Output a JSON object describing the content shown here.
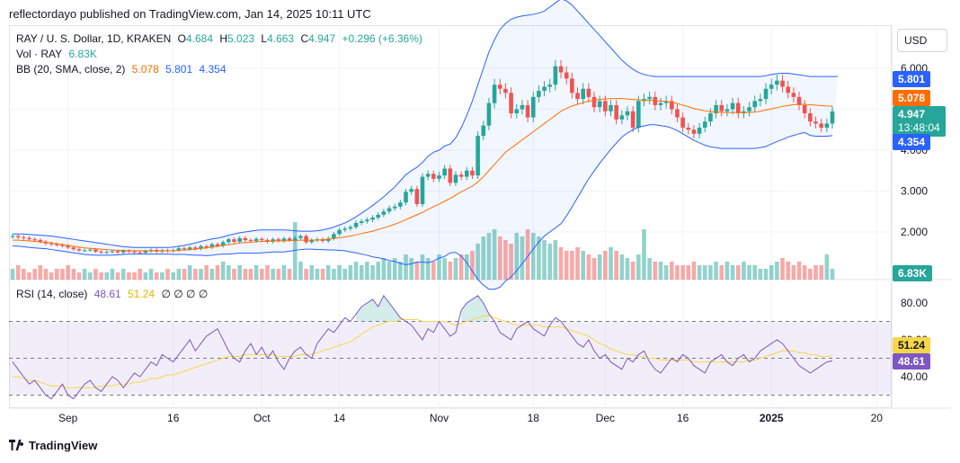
{
  "header": {
    "text": "reflectordayo published on TradingView.com, Jan 14, 2025 10:11 UTC"
  },
  "legend": {
    "symbol": "RAY / U. S. Dollar, 1D, KRAKEN",
    "o_label": "O",
    "o": "4.684",
    "h_label": "H",
    "h": "5.023",
    "l_label": "L",
    "l": "4.663",
    "c_label": "C",
    "c": "4.947",
    "change": "+0.296 (+6.36%)",
    "vol_label": "Vol · RAY",
    "vol": "6.83K",
    "bb_label": "BB (20, SMA, close, 2)",
    "bb_mid": "5.078",
    "bb_up": "5.801",
    "bb_low": "4.354",
    "rsi_label": "RSI (14, close)",
    "rsi": "48.61",
    "rsi_ma": "51.24",
    "rsi_extra": "∅ ∅ ∅ ∅"
  },
  "currency_button": "USD",
  "price_tags": {
    "bb_up": "5.801",
    "bb_mid": "5.078",
    "close": "4.947",
    "countdown": "13:48:04",
    "bb_low": "4.354",
    "volume": "6.83K",
    "rsi_ma": "51.24",
    "rsi": "48.61"
  },
  "colors": {
    "up": "#26a69a",
    "down": "#ef5350",
    "bb_band": "#2962ff",
    "bb_mid": "#ff6d00",
    "rsi": "#7e57c2",
    "rsi_ma": "#f7d64a"
  },
  "footer": {
    "brand": "TradingView"
  },
  "chart_data": {
    "type": "candlestick",
    "price_axis_ticks": [
      "6.000",
      "5.000",
      "4.000",
      "3.000",
      "2.000"
    ],
    "price_axis_values": [
      6.0,
      5.0,
      4.0,
      3.0,
      2.0
    ],
    "rsi_axis_ticks": [
      "80.00",
      "60.00",
      "40.00"
    ],
    "rsi_axis_values": [
      80,
      60,
      40
    ],
    "rsi_levels": [
      70,
      50,
      30
    ],
    "x_ticks": [
      {
        "label": "Sep",
        "i": 10
      },
      {
        "label": "16",
        "i": 29
      },
      {
        "label": "Oct",
        "i": 45
      },
      {
        "label": "14",
        "i": 59
      },
      {
        "label": "Nov",
        "i": 77
      },
      {
        "label": "18",
        "i": 94
      },
      {
        "label": "Dec",
        "i": 107
      },
      {
        "label": "16",
        "i": 121
      },
      {
        "label": "2025",
        "i": 137
      },
      {
        "label": "20",
        "i": 156
      }
    ],
    "close": [
      1.9,
      1.87,
      1.85,
      1.82,
      1.8,
      1.76,
      1.72,
      1.7,
      1.68,
      1.66,
      1.62,
      1.58,
      1.55,
      1.55,
      1.57,
      1.52,
      1.5,
      1.51,
      1.53,
      1.5,
      1.54,
      1.52,
      1.5,
      1.49,
      1.53,
      1.56,
      1.52,
      1.55,
      1.53,
      1.55,
      1.6,
      1.58,
      1.62,
      1.59,
      1.65,
      1.62,
      1.7,
      1.66,
      1.75,
      1.82,
      1.76,
      1.85,
      1.8,
      1.78,
      1.83,
      1.8,
      1.76,
      1.82,
      1.78,
      1.84,
      1.8,
      1.85,
      1.9,
      1.75,
      1.8,
      1.82,
      1.78,
      1.84,
      1.95,
      2.05,
      2.08,
      2.12,
      2.22,
      2.26,
      2.3,
      2.35,
      2.42,
      2.5,
      2.58,
      2.62,
      2.72,
      2.98,
      3.05,
      2.68,
      3.35,
      3.42,
      3.3,
      3.38,
      3.55,
      3.2,
      3.4,
      3.35,
      3.5,
      3.38,
      4.35,
      4.6,
      5.15,
      5.6,
      5.5,
      5.4,
      4.9,
      5.0,
      5.1,
      4.8,
      5.3,
      5.45,
      5.55,
      5.6,
      6.05,
      5.9,
      5.75,
      5.4,
      5.25,
      5.5,
      5.3,
      5.05,
      5.2,
      4.95,
      5.1,
      4.75,
      4.85,
      4.95,
      4.55,
      5.2,
      5.25,
      5.3,
      5.1,
      5.15,
      5.2,
      5.0,
      4.8,
      4.55,
      4.5,
      4.4,
      4.55,
      4.7,
      4.9,
      5.1,
      4.95,
      5.0,
      5.15,
      4.9,
      4.95,
      5.05,
      5.2,
      5.25,
      5.5,
      5.6,
      5.7,
      5.55,
      5.4,
      5.3,
      5.1,
      4.9,
      4.7,
      4.65,
      4.55,
      4.65,
      4.947
    ],
    "bb_upper": [
      1.95,
      1.95,
      1.95,
      1.94,
      1.93,
      1.92,
      1.91,
      1.9,
      1.88,
      1.86,
      1.84,
      1.82,
      1.8,
      1.78,
      1.76,
      1.74,
      1.72,
      1.7,
      1.68,
      1.66,
      1.64,
      1.63,
      1.62,
      1.62,
      1.62,
      1.62,
      1.62,
      1.62,
      1.62,
      1.63,
      1.65,
      1.67,
      1.7,
      1.73,
      1.77,
      1.8,
      1.83,
      1.85,
      1.88,
      1.92,
      1.95,
      1.98,
      2.0,
      2.02,
      2.04,
      2.05,
      2.05,
      2.05,
      2.05,
      2.05,
      2.04,
      2.03,
      2.02,
      2.02,
      2.02,
      2.03,
      2.05,
      2.08,
      2.12,
      2.17,
      2.22,
      2.29,
      2.37,
      2.46,
      2.55,
      2.65,
      2.75,
      2.86,
      2.98,
      3.1,
      3.25,
      3.4,
      3.5,
      3.58,
      3.7,
      3.85,
      3.95,
      4.0,
      4.1,
      4.15,
      4.3,
      4.55,
      4.85,
      5.2,
      5.6,
      6.0,
      6.4,
      6.7,
      6.95,
      7.1,
      7.2,
      7.25,
      7.28,
      7.3,
      7.32,
      7.35,
      7.4,
      7.5,
      7.6,
      7.7,
      7.65,
      7.55,
      7.4,
      7.25,
      7.1,
      6.95,
      6.8,
      6.65,
      6.5,
      6.35,
      6.2,
      6.08,
      5.98,
      5.9,
      5.85,
      5.82,
      5.8,
      5.8,
      5.8,
      5.8,
      5.8,
      5.8,
      5.8,
      5.8,
      5.8,
      5.8,
      5.8,
      5.8,
      5.8,
      5.8,
      5.8,
      5.8,
      5.8,
      5.8,
      5.8,
      5.8,
      5.82,
      5.85,
      5.87,
      5.88,
      5.88,
      5.86,
      5.84,
      5.82,
      5.8,
      5.8,
      5.8,
      5.8,
      5.8,
      5.801
    ],
    "bb_middle": [
      1.8,
      1.8,
      1.79,
      1.78,
      1.77,
      1.76,
      1.75,
      1.73,
      1.71,
      1.69,
      1.67,
      1.65,
      1.63,
      1.61,
      1.6,
      1.59,
      1.58,
      1.57,
      1.56,
      1.55,
      1.55,
      1.54,
      1.54,
      1.54,
      1.54,
      1.54,
      1.54,
      1.54,
      1.54,
      1.54,
      1.55,
      1.56,
      1.57,
      1.58,
      1.6,
      1.61,
      1.63,
      1.65,
      1.67,
      1.69,
      1.71,
      1.73,
      1.74,
      1.75,
      1.76,
      1.77,
      1.77,
      1.78,
      1.78,
      1.78,
      1.79,
      1.79,
      1.8,
      1.8,
      1.8,
      1.8,
      1.81,
      1.82,
      1.84,
      1.86,
      1.88,
      1.9,
      1.93,
      1.96,
      1.99,
      2.02,
      2.06,
      2.1,
      2.14,
      2.19,
      2.24,
      2.3,
      2.36,
      2.42,
      2.48,
      2.55,
      2.62,
      2.68,
      2.75,
      2.82,
      2.9,
      2.98,
      3.05,
      3.12,
      3.22,
      3.35,
      3.5,
      3.65,
      3.8,
      3.95,
      4.05,
      4.15,
      4.25,
      4.35,
      4.45,
      4.55,
      4.65,
      4.75,
      4.85,
      4.95,
      5.02,
      5.08,
      5.12,
      5.16,
      5.2,
      5.22,
      5.24,
      5.25,
      5.26,
      5.26,
      5.26,
      5.25,
      5.24,
      5.23,
      5.22,
      5.22,
      5.21,
      5.2,
      5.19,
      5.17,
      5.14,
      5.1,
      5.06,
      5.02,
      4.99,
      4.96,
      4.94,
      4.93,
      4.92,
      4.92,
      4.92,
      4.92,
      4.92,
      4.92,
      4.93,
      4.95,
      4.98,
      5.01,
      5.04,
      5.07,
      5.09,
      5.11,
      5.12,
      5.12,
      5.11,
      5.1,
      5.09,
      5.08,
      5.078
    ],
    "bb_lower": [
      1.66,
      1.65,
      1.64,
      1.62,
      1.61,
      1.6,
      1.59,
      1.57,
      1.55,
      1.53,
      1.51,
      1.49,
      1.47,
      1.45,
      1.44,
      1.43,
      1.43,
      1.43,
      1.43,
      1.44,
      1.45,
      1.46,
      1.46,
      1.46,
      1.46,
      1.46,
      1.46,
      1.46,
      1.46,
      1.45,
      1.45,
      1.45,
      1.44,
      1.43,
      1.43,
      1.42,
      1.43,
      1.45,
      1.46,
      1.46,
      1.47,
      1.48,
      1.48,
      1.48,
      1.48,
      1.49,
      1.5,
      1.51,
      1.51,
      1.51,
      1.53,
      1.55,
      1.57,
      1.58,
      1.58,
      1.57,
      1.57,
      1.56,
      1.56,
      1.55,
      1.54,
      1.51,
      1.49,
      1.46,
      1.43,
      1.39,
      1.37,
      1.34,
      1.3,
      1.28,
      1.23,
      1.2,
      1.22,
      1.26,
      1.26,
      1.25,
      1.29,
      1.36,
      1.4,
      1.49,
      1.5,
      1.41,
      1.25,
      1.04,
      0.84,
      0.7,
      0.6,
      0.6,
      0.65,
      0.8,
      0.9,
      1.05,
      1.22,
      1.4,
      1.58,
      1.75,
      1.9,
      2.0,
      2.1,
      2.2,
      2.39,
      2.61,
      2.84,
      3.07,
      3.3,
      3.49,
      3.68,
      3.85,
      4.02,
      4.17,
      4.32,
      4.42,
      4.5,
      4.56,
      4.59,
      4.62,
      4.62,
      4.6,
      4.58,
      4.54,
      4.48,
      4.4,
      4.32,
      4.24,
      4.18,
      4.12,
      4.08,
      4.06,
      4.04,
      4.04,
      4.04,
      4.04,
      4.04,
      4.04,
      4.04,
      4.06,
      4.09,
      4.15,
      4.21,
      4.26,
      4.32,
      4.36,
      4.4,
      4.43,
      4.36,
      4.34,
      4.34,
      4.34,
      4.354
    ],
    "volume": [
      3,
      4,
      3,
      2,
      3,
      4,
      3,
      2,
      3,
      3,
      4,
      3,
      2,
      3,
      2,
      3,
      2,
      2,
      3,
      2,
      3,
      2,
      2,
      3,
      2,
      3,
      2,
      2,
      3,
      2,
      3,
      3,
      4,
      3,
      3,
      4,
      3,
      4,
      5,
      4,
      3,
      4,
      3,
      3,
      4,
      3,
      4,
      3,
      3,
      4,
      3,
      16,
      5,
      3,
      4,
      3,
      3,
      4,
      3,
      4,
      3,
      4,
      5,
      4,
      5,
      4,
      5,
      6,
      5,
      6,
      5,
      7,
      6,
      5,
      7,
      6,
      5,
      7,
      6,
      5,
      6,
      7,
      7,
      8,
      10,
      12,
      13,
      14,
      12,
      11,
      10,
      13,
      12,
      14,
      13,
      12,
      11,
      10,
      11,
      9,
      8,
      8,
      9,
      8,
      7,
      6,
      7,
      8,
      9,
      8,
      7,
      6,
      5,
      7,
      14,
      6,
      5,
      5,
      4,
      5,
      4,
      4,
      4,
      5,
      4,
      4,
      4,
      5,
      4,
      5,
      4,
      4,
      5,
      4,
      4,
      3,
      3,
      4,
      5,
      6,
      5,
      4,
      5,
      4,
      3,
      4,
      4,
      7,
      3
    ],
    "rsi": [
      48,
      44,
      40,
      36,
      38,
      34,
      30,
      28,
      32,
      36,
      30,
      28,
      32,
      36,
      38,
      34,
      32,
      36,
      40,
      38,
      34,
      38,
      42,
      40,
      44,
      48,
      46,
      52,
      50,
      48,
      52,
      56,
      60,
      54,
      58,
      62,
      64,
      66,
      60,
      54,
      50,
      48,
      54,
      58,
      52,
      56,
      50,
      54,
      48,
      44,
      50,
      54,
      56,
      52,
      50,
      58,
      62,
      66,
      64,
      68,
      72,
      70,
      74,
      78,
      80,
      82,
      78,
      84,
      80,
      76,
      72,
      70,
      68,
      64,
      60,
      66,
      64,
      70,
      66,
      62,
      64,
      76,
      80,
      82,
      84,
      80,
      74,
      70,
      64,
      62,
      60,
      66,
      68,
      70,
      66,
      64,
      62,
      68,
      72,
      70,
      66,
      62,
      58,
      56,
      60,
      54,
      50,
      52,
      48,
      46,
      44,
      50,
      48,
      52,
      54,
      48,
      44,
      42,
      46,
      50,
      48,
      52,
      50,
      46,
      44,
      42,
      48,
      50,
      52,
      48,
      46,
      50,
      52,
      48,
      50,
      54,
      56,
      58,
      60,
      58,
      54,
      50,
      46,
      44,
      42,
      44,
      46,
      48,
      48.61
    ],
    "rsi_ma": [
      40,
      40,
      39,
      38,
      38,
      37,
      36,
      35,
      35,
      35,
      34,
      34,
      34,
      34,
      34,
      34,
      35,
      35,
      35,
      36,
      36,
      36,
      37,
      37,
      38,
      39,
      39,
      40,
      41,
      41,
      42,
      43,
      44,
      45,
      46,
      47,
      48,
      49,
      50,
      51,
      51,
      51,
      52,
      52,
      52,
      52,
      52,
      52,
      51,
      51,
      51,
      51,
      52,
      52,
      52,
      53,
      54,
      55,
      56,
      57,
      58,
      59,
      61,
      63,
      65,
      67,
      68,
      69,
      70,
      70,
      71,
      71,
      71,
      71,
      70,
      70,
      70,
      70,
      70,
      69,
      68,
      69,
      70,
      71,
      72,
      73,
      73,
      72,
      71,
      70,
      69,
      68,
      68,
      68,
      68,
      68,
      67,
      67,
      67,
      67,
      66,
      65,
      64,
      63,
      62,
      60,
      58,
      57,
      55,
      54,
      53,
      52,
      52,
      51,
      51,
      50,
      50,
      49,
      49,
      49,
      49,
      49,
      49,
      48,
      48,
      48,
      48,
      48,
      48,
      48,
      48,
      48,
      48,
      49,
      49,
      50,
      51,
      52,
      53,
      54,
      54,
      54,
      53,
      53,
      52,
      52,
      51,
      51,
      51.24
    ]
  }
}
